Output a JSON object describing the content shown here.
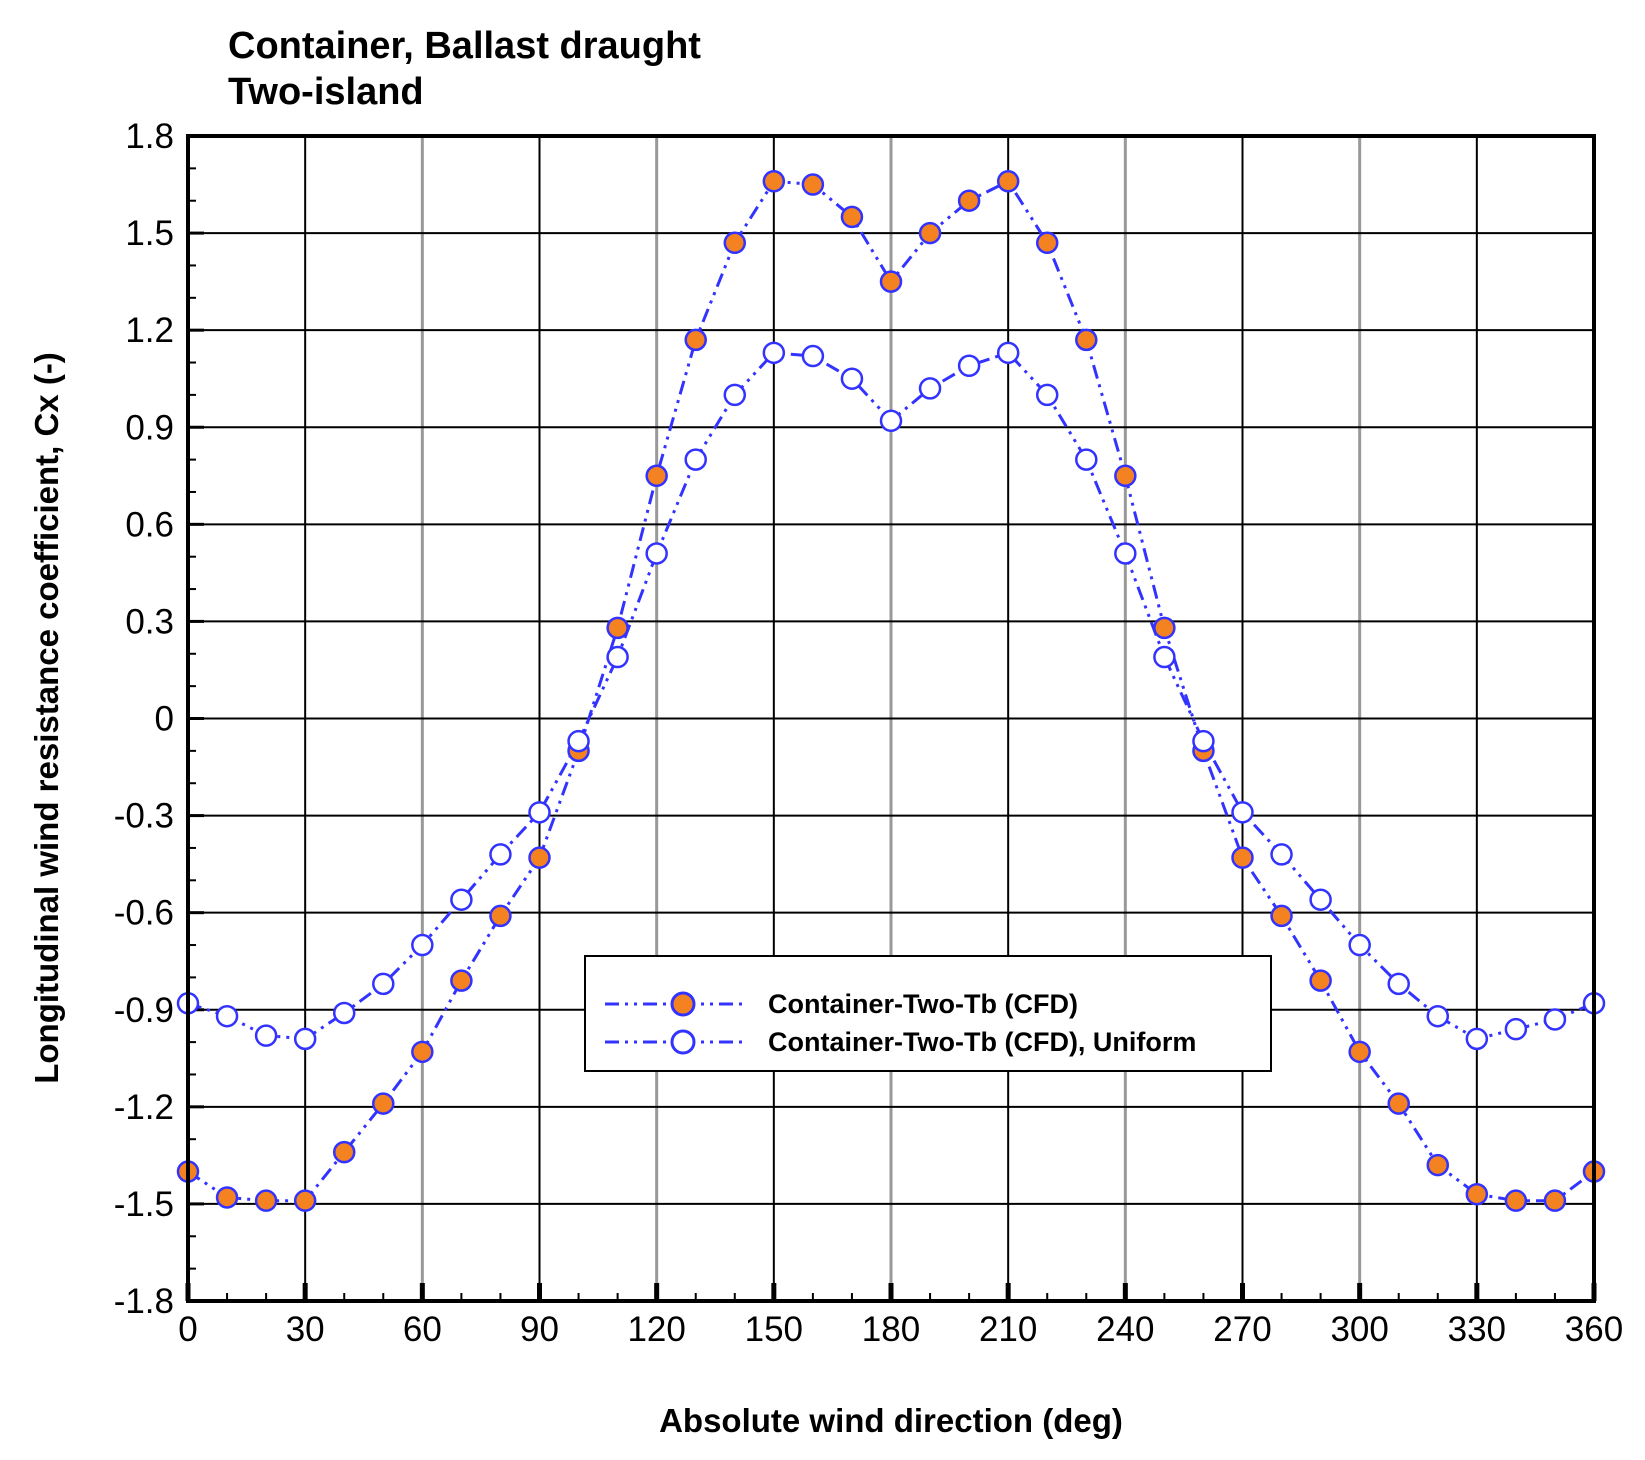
{
  "chart_data": {
    "type": "line",
    "title": "Container, Ballast draught",
    "subtitle": "Two-island",
    "xlabel": "Absolute wind direction (deg)",
    "ylabel": "Longitudinal wind resistance coefficient, Cx (-)",
    "xlim": [
      0,
      360
    ],
    "ylim": [
      -1.8,
      1.8
    ],
    "xticks": [
      "0",
      "30",
      "60",
      "90",
      "120",
      "150",
      "180",
      "210",
      "240",
      "270",
      "300",
      "330",
      "360"
    ],
    "yticks": [
      "1.8",
      "1.5",
      "1.2",
      "0.9",
      "0.6",
      "0.3",
      "0",
      "-0.3",
      "-0.6",
      "-0.9",
      "-1.2",
      "-1.5",
      "-1.8"
    ],
    "grid": true,
    "legend_position": "lower-center",
    "x": [
      0,
      10,
      20,
      30,
      40,
      50,
      60,
      70,
      80,
      90,
      100,
      110,
      120,
      130,
      140,
      150,
      160,
      170,
      180,
      190,
      200,
      210,
      220,
      230,
      240,
      250,
      260,
      270,
      280,
      290,
      300,
      310,
      320,
      330,
      340,
      350,
      360
    ],
    "series": [
      {
        "name": "Container-Two-Tb (CFD)",
        "marker": "filled-circle",
        "line_color": "#3333ff",
        "marker_color": "#f58220",
        "values": [
          -1.4,
          -1.48,
          -1.49,
          -1.49,
          -1.34,
          -1.19,
          -1.03,
          -0.81,
          -0.61,
          -0.43,
          -0.1,
          0.28,
          0.75,
          1.17,
          1.47,
          1.66,
          1.65,
          1.55,
          1.35,
          1.5,
          1.6,
          1.66,
          1.47,
          1.17,
          0.75,
          0.28,
          -0.1,
          -0.43,
          -0.61,
          -0.81,
          -1.03,
          -1.19,
          -1.38,
          -1.47,
          -1.49,
          -1.49,
          -1.4
        ]
      },
      {
        "name": "Container-Two-Tb (CFD), Uniform",
        "marker": "open-circle",
        "line_color": "#3333ff",
        "marker_color": "#ffffff",
        "values": [
          -0.88,
          -0.92,
          -0.98,
          -0.99,
          -0.91,
          -0.82,
          -0.7,
          -0.56,
          -0.42,
          -0.29,
          -0.07,
          0.19,
          0.51,
          0.8,
          1.0,
          1.13,
          1.12,
          1.05,
          0.92,
          1.02,
          1.09,
          1.13,
          1.0,
          0.8,
          0.51,
          0.19,
          -0.07,
          -0.29,
          -0.42,
          -0.56,
          -0.7,
          -0.82,
          -0.92,
          -0.99,
          -0.96,
          -0.93,
          -0.88
        ]
      }
    ]
  }
}
